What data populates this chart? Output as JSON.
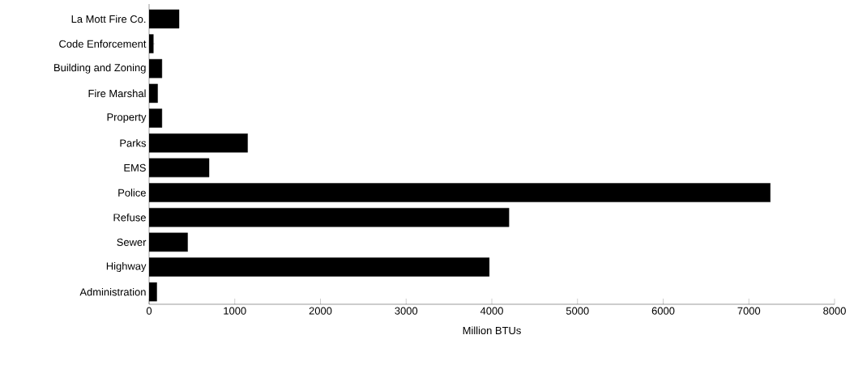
{
  "chart_data": {
    "type": "bar",
    "orientation": "horizontal",
    "xlabel": "Million BTUs",
    "categories": [
      "La Mott Fire Co.",
      "Code Enforcement",
      "Building and Zoning",
      "Fire Marshal",
      "Property",
      "Parks",
      "EMS",
      "Police",
      "Refuse",
      "Sewer",
      "Highway",
      "Administration"
    ],
    "values": [
      350,
      50,
      150,
      100,
      150,
      1150,
      700,
      7250,
      4200,
      450,
      3970,
      90
    ],
    "color": "#000000",
    "xlim": [
      0,
      8000
    ],
    "xticks": [
      0,
      1000,
      2000,
      3000,
      4000,
      5000,
      6000,
      7000,
      8000
    ],
    "grid": false
  }
}
